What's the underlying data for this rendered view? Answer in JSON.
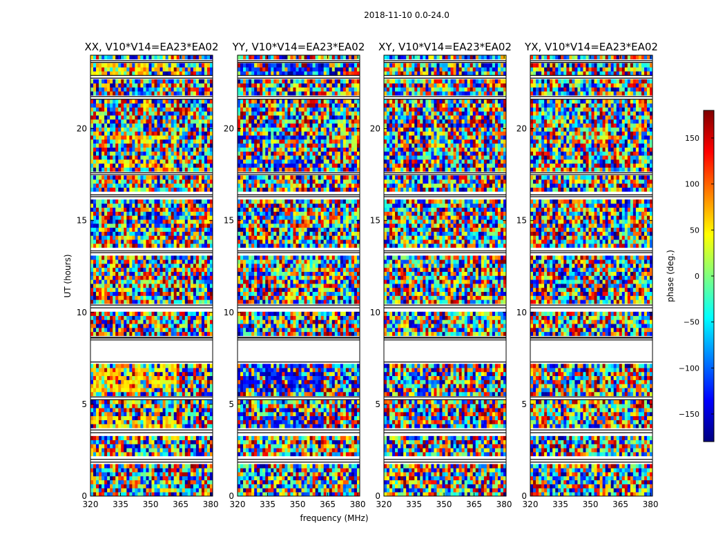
{
  "suptitle": "2018-11-10 0.0-24.0",
  "xlabel": "frequency (MHz)",
  "ylabel": "UT (hours)",
  "colorbar": {
    "label": "phase (deg.)",
    "ticks": [
      150,
      100,
      50,
      0,
      -50,
      -100,
      -150
    ],
    "range": [
      -180,
      180
    ],
    "colormap": "jet",
    "colors": [
      "#00007f",
      "#0000ff",
      "#007fff",
      "#00ffff",
      "#7fff7f",
      "#ffff00",
      "#ff7f00",
      "#ff0000",
      "#7f0000"
    ]
  },
  "chart_data": {
    "type": "heatmap",
    "xlim": [
      320,
      381
    ],
    "ylim": [
      0,
      24
    ],
    "xticks": [
      320,
      335,
      350,
      365,
      380
    ],
    "yticks": [
      0,
      5,
      10,
      15,
      20
    ],
    "value_range": [
      -180,
      180
    ],
    "panels": [
      {
        "title": "XX, V10*V14=EA23*EA02",
        "dominant_phase": 60
      },
      {
        "title": "YY, V10*V14=EA23*EA02",
        "dominant_phase": -130
      },
      {
        "title": "XY, V10*V14=EA23*EA02",
        "dominant_phase": null
      },
      {
        "title": "YX, V10*V14=EA23*EA02",
        "dominant_phase": null
      }
    ],
    "flagged_ut_ranges": [
      [
        1.85,
        2.0
      ],
      [
        3.45,
        3.6
      ],
      [
        5.25,
        5.4
      ],
      [
        7.3,
        8.5
      ],
      [
        8.6,
        8.65
      ],
      [
        10.25,
        10.4
      ],
      [
        13.25,
        13.35
      ],
      [
        16.3,
        16.4
      ],
      [
        17.5,
        17.6
      ],
      [
        21.6,
        21.75
      ],
      [
        22.75,
        22.9
      ],
      [
        23.6,
        23.7
      ]
    ]
  }
}
